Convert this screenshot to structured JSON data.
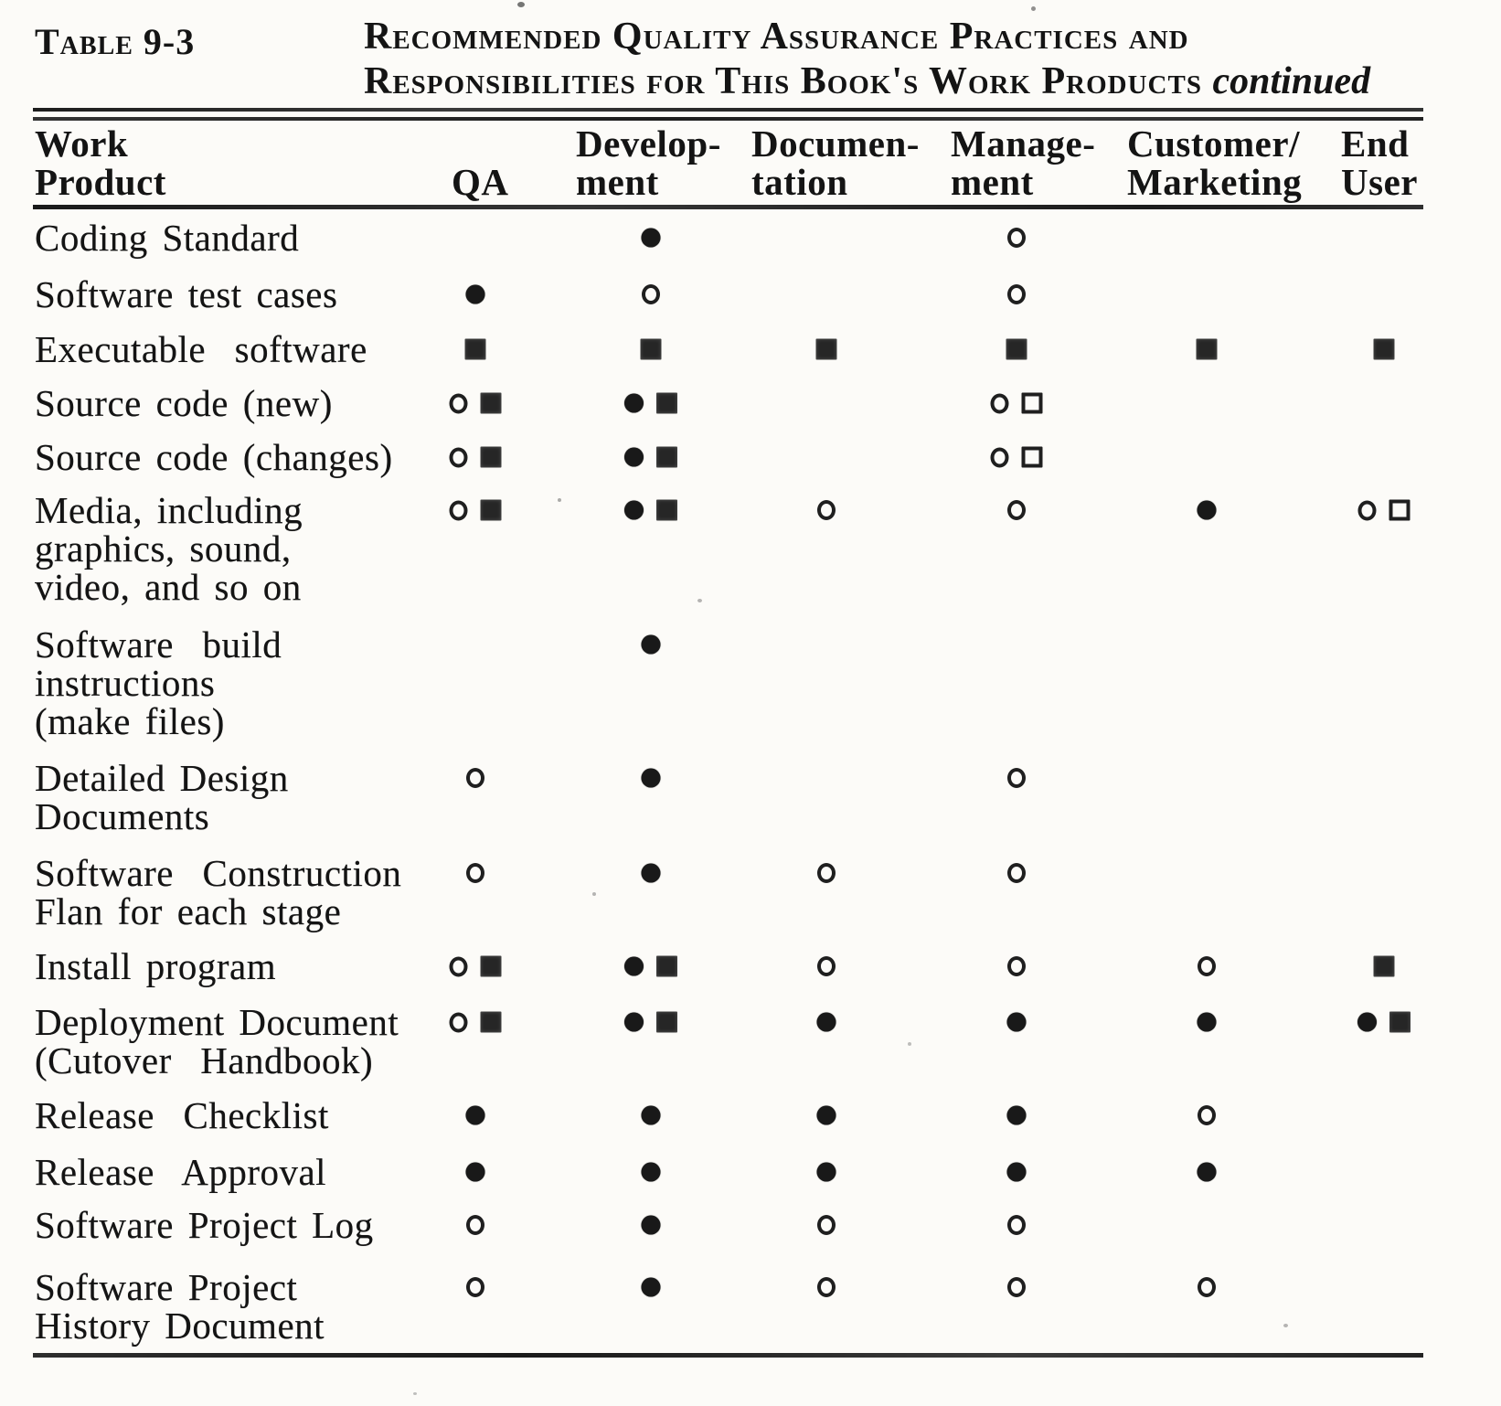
{
  "table_label": "Table 9-3",
  "title": {
    "line1": "Recommended Quality Assurance Practices and",
    "line2": "Responsibilities for This Book's Work Products",
    "continued": "continued"
  },
  "columns": [
    {
      "id": "work",
      "label": "Work\nProduct"
    },
    {
      "id": "qa",
      "label": "QA"
    },
    {
      "id": "dev",
      "label": "Develop-\nment"
    },
    {
      "id": "doc",
      "label": "Documen-\ntation"
    },
    {
      "id": "mgmt",
      "label": "Manage-\nment"
    },
    {
      "id": "cust",
      "label": "Customer/\nMarketing"
    },
    {
      "id": "end",
      "label": "End\nUser"
    }
  ],
  "symbol_names": [
    "filled-circle",
    "open-circle",
    "filled-square",
    "open-square"
  ],
  "rows": [
    {
      "label": "Coding Standard",
      "cells": {
        "dev": [
          "filled-circle"
        ],
        "mgmt": [
          "open-circle"
        ]
      }
    },
    {
      "label": "Software test cases",
      "cells": {
        "qa": [
          "filled-circle"
        ],
        "dev": [
          "open-circle"
        ],
        "mgmt": [
          "open-circle"
        ]
      }
    },
    {
      "label": "Executable  software",
      "cells": {
        "qa": [
          "filled-square"
        ],
        "dev": [
          "filled-square"
        ],
        "doc": [
          "filled-square"
        ],
        "mgmt": [
          "filled-square"
        ],
        "cust": [
          "filled-square"
        ],
        "end": [
          "filled-square"
        ]
      }
    },
    {
      "label": "Source code (new)",
      "cells": {
        "qa": [
          "open-circle",
          "filled-square"
        ],
        "dev": [
          "filled-circle",
          "filled-square"
        ],
        "mgmt": [
          "open-circle",
          "open-square"
        ]
      }
    },
    {
      "label": "Source code (changes)",
      "cells": {
        "qa": [
          "open-circle",
          "filled-square"
        ],
        "dev": [
          "filled-circle",
          "filled-square"
        ],
        "mgmt": [
          "open-circle",
          "open-square"
        ]
      }
    },
    {
      "label": "Media, including\ngraphics, sound,\nvideo, and so on",
      "cells": {
        "qa": [
          "open-circle",
          "filled-square"
        ],
        "dev": [
          "filled-circle",
          "filled-square"
        ],
        "doc": [
          "open-circle"
        ],
        "mgmt": [
          "open-circle"
        ],
        "cust": [
          "filled-circle"
        ],
        "end": [
          "open-circle",
          "open-square"
        ]
      }
    },
    {
      "label": "Software  build\ninstructions\n(make files)",
      "cells": {
        "dev": [
          "filled-circle"
        ]
      }
    },
    {
      "label": "Detailed Design\nDocuments",
      "cells": {
        "qa": [
          "open-circle"
        ],
        "dev": [
          "filled-circle"
        ],
        "mgmt": [
          "open-circle"
        ]
      }
    },
    {
      "label": "Software  Construction\nFlan for each stage",
      "cells": {
        "qa": [
          "open-circle"
        ],
        "dev": [
          "filled-circle"
        ],
        "doc": [
          "open-circle"
        ],
        "mgmt": [
          "open-circle"
        ]
      }
    },
    {
      "label": "Install program",
      "cells": {
        "qa": [
          "open-circle",
          "filled-square"
        ],
        "dev": [
          "filled-circle",
          "filled-square"
        ],
        "doc": [
          "open-circle"
        ],
        "mgmt": [
          "open-circle"
        ],
        "cust": [
          "open-circle"
        ],
        "end": [
          "filled-square"
        ]
      }
    },
    {
      "label": "Deployment Document\n(Cutover  Handbook)",
      "cells": {
        "qa": [
          "open-circle",
          "filled-square"
        ],
        "dev": [
          "filled-circle",
          "filled-square"
        ],
        "doc": [
          "filled-circle"
        ],
        "mgmt": [
          "filled-circle"
        ],
        "cust": [
          "filled-circle"
        ],
        "end": [
          "filled-circle",
          "filled-square"
        ]
      }
    },
    {
      "label": "Release  Checklist",
      "cells": {
        "qa": [
          "filled-circle"
        ],
        "dev": [
          "filled-circle"
        ],
        "doc": [
          "filled-circle"
        ],
        "mgmt": [
          "filled-circle"
        ],
        "cust": [
          "open-circle"
        ]
      }
    },
    {
      "label": "Release  Approval",
      "cells": {
        "qa": [
          "filled-circle"
        ],
        "dev": [
          "filled-circle"
        ],
        "doc": [
          "filled-circle"
        ],
        "mgmt": [
          "filled-circle"
        ],
        "cust": [
          "filled-circle"
        ]
      }
    },
    {
      "label": "Software Project Log",
      "cells": {
        "qa": [
          "open-circle"
        ],
        "dev": [
          "filled-circle"
        ],
        "doc": [
          "open-circle"
        ],
        "mgmt": [
          "open-circle"
        ]
      }
    },
    {
      "label": "Software Project\nHistory Document",
      "cells": {
        "qa": [
          "open-circle"
        ],
        "dev": [
          "filled-circle"
        ],
        "doc": [
          "open-circle"
        ],
        "mgmt": [
          "open-circle"
        ],
        "cust": [
          "open-circle"
        ]
      }
    }
  ]
}
